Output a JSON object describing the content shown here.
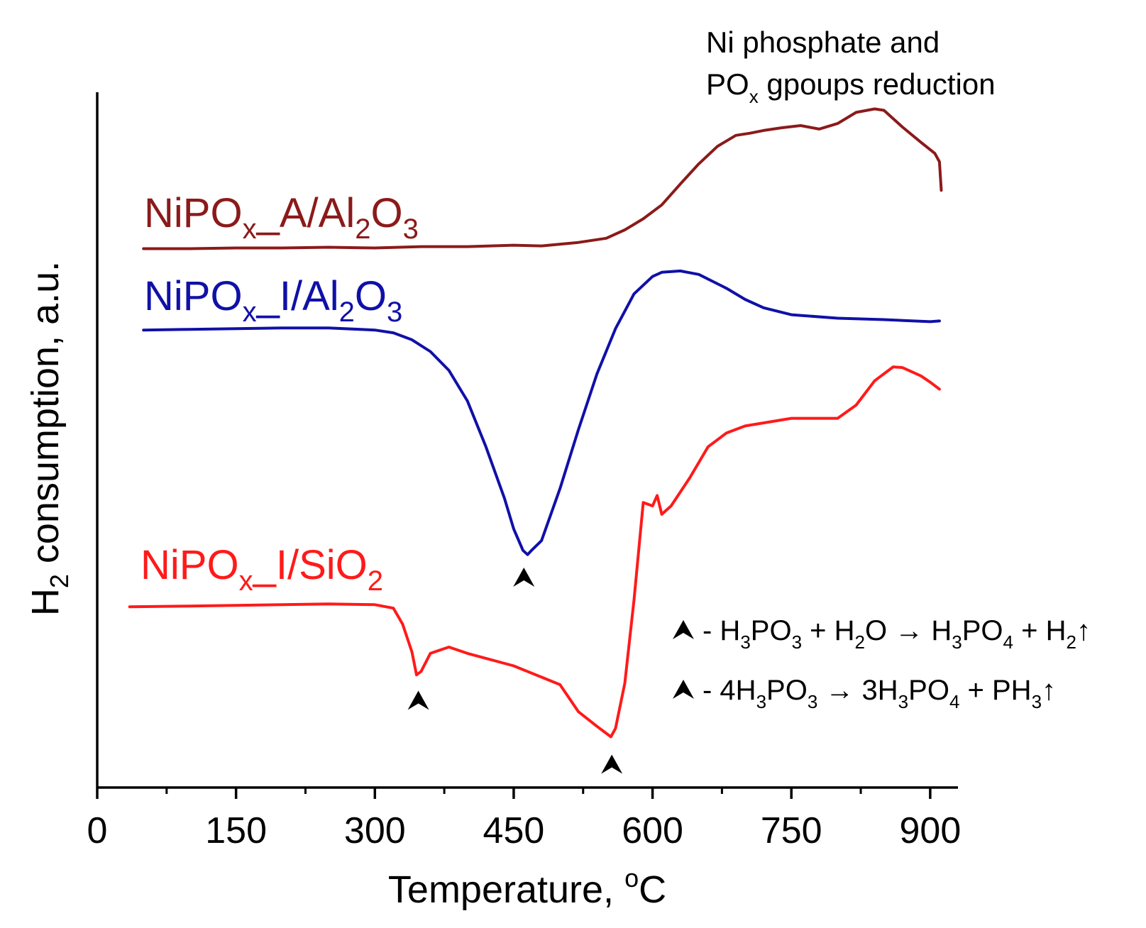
{
  "chart_data": {
    "type": "line",
    "title": "",
    "xlabel": "Temperature, °C",
    "ylabel": "H2 consumption, a.u.",
    "xlim": [
      0,
      930
    ],
    "ylim": [
      0,
      100
    ],
    "x_ticks": [
      "0",
      "150",
      "300",
      "450",
      "600",
      "750",
      "900"
    ],
    "y_ticks": [],
    "grid": false,
    "legend": "inline labels next to curves",
    "colors": {
      "A_Al2O3": "#8b1a1a",
      "I_Al2O3": "#1010a8",
      "I_SiO2": "#ff1a1a",
      "axis": "#000000"
    },
    "series": [
      {
        "name": "NiPOx_A/Al2O3",
        "label_parts": [
          "NiPO",
          "x",
          "_A/Al",
          "2",
          "O",
          "3"
        ],
        "x": [
          50,
          100,
          150,
          200,
          250,
          300,
          350,
          400,
          450,
          480,
          520,
          550,
          570,
          590,
          610,
          630,
          650,
          670,
          690,
          705,
          720,
          740,
          760,
          780,
          800,
          820,
          840,
          850,
          870,
          890,
          905,
          910,
          912
        ],
        "values": [
          77.5,
          77.5,
          77.6,
          77.6,
          77.7,
          77.6,
          77.8,
          77.8,
          78.0,
          77.9,
          78.4,
          79.0,
          80.2,
          81.8,
          83.8,
          86.8,
          89.7,
          92.2,
          93.8,
          94.1,
          94.5,
          94.9,
          95.2,
          94.7,
          95.5,
          97.1,
          97.6,
          97.4,
          95.0,
          92.8,
          91.2,
          90.0,
          85.9
        ]
      },
      {
        "name": "NiPOx_I/Al2O3",
        "label_parts": [
          "NiPO",
          "x",
          "_I/Al",
          "2",
          "O",
          "3"
        ],
        "x": [
          50,
          100,
          150,
          200,
          250,
          300,
          320,
          340,
          360,
          380,
          400,
          420,
          440,
          450,
          460,
          465,
          470,
          480,
          500,
          520,
          540,
          560,
          580,
          600,
          610,
          630,
          650,
          680,
          700,
          720,
          750,
          800,
          850,
          900,
          910
        ],
        "values": [
          65.8,
          65.9,
          66.0,
          66.1,
          66.1,
          65.8,
          65.4,
          64.4,
          62.7,
          60.0,
          55.6,
          49.0,
          41.6,
          37.2,
          34.1,
          33.5,
          34.2,
          35.5,
          43.0,
          51.5,
          59.5,
          66.0,
          71.0,
          73.5,
          74.1,
          74.3,
          73.8,
          71.8,
          70.2,
          69.0,
          68.0,
          67.5,
          67.3,
          67.0,
          67.1
        ]
      },
      {
        "name": "NiPOx_I/SiO2",
        "label_parts": [
          "NiPO",
          "x",
          "_I/SiO",
          "2"
        ],
        "x": [
          35,
          100,
          150,
          200,
          250,
          300,
          320,
          330,
          340,
          345,
          350,
          360,
          380,
          400,
          450,
          500,
          520,
          540,
          550,
          555,
          560,
          570,
          580,
          590,
          600,
          605,
          610,
          620,
          640,
          660,
          680,
          700,
          750,
          800,
          820,
          840,
          860,
          870,
          890,
          900,
          910
        ],
        "values": [
          26.0,
          26.1,
          26.2,
          26.3,
          26.4,
          26.3,
          25.8,
          23.5,
          19.5,
          16.2,
          16.7,
          19.3,
          20.2,
          19.3,
          17.5,
          14.8,
          10.9,
          8.8,
          7.8,
          7.3,
          8.5,
          15.0,
          27.0,
          41.0,
          40.5,
          42.0,
          39.3,
          40.5,
          44.5,
          49.0,
          51.0,
          52.0,
          53.1,
          53.1,
          55.0,
          58.5,
          60.5,
          60.4,
          59.2,
          58.3,
          57.3
        ]
      }
    ],
    "annotations": {
      "region_label_line1": "Ni phosphate and",
      "region_label_line2_parts": [
        "PO",
        "x",
        " gpoups  reduction"
      ],
      "peak_markers": [
        {
          "x": 461,
          "y": 30.2
        },
        {
          "x": 347,
          "y": 12.5
        },
        {
          "x": 556,
          "y": 3.3
        }
      ],
      "marker_symbol": "⮝",
      "reaction_1_parts": [
        "- H",
        "3",
        "PO",
        "3",
        " + H",
        "2",
        "O → H",
        "3",
        "PO",
        "4",
        " + H",
        "2",
        "↑"
      ],
      "reaction_2_parts": [
        "- 4H",
        "3",
        "PO",
        "3",
        " → 3H",
        "3",
        "PO",
        "4",
        " + PH",
        "3",
        "↑"
      ]
    }
  }
}
